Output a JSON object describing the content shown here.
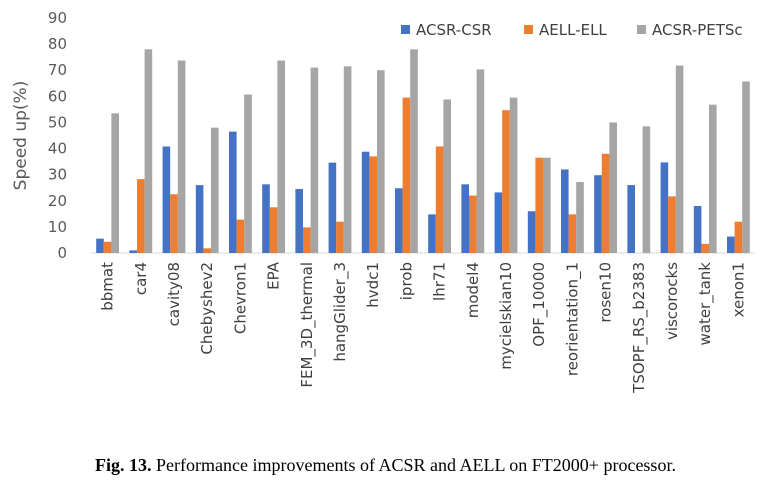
{
  "chart_data": {
    "type": "bar",
    "title": "",
    "xlabel": "",
    "ylabel": "Speed up(%)",
    "ylim": [
      0,
      90
    ],
    "yticks": [
      0,
      10,
      20,
      30,
      40,
      50,
      60,
      70,
      80,
      90
    ],
    "grid": false,
    "legend_position": "top-right",
    "categories": [
      "bbmat",
      "car4",
      "cavity08",
      "Chebyshev2",
      "Chevron1",
      "EPA",
      "FEM_3D_thermal",
      "hangGlider_3",
      "hvdc1",
      "iprob",
      "lhr71",
      "model4",
      "mycielskian10",
      "OPF_10000",
      "reorientation_1",
      "rosen10",
      "TSOPF_RS_b2383",
      "viscorocks",
      "water_tank",
      "xenon1"
    ],
    "series": [
      {
        "name": "ACSR-CSR",
        "color": "#4472C4",
        "values": [
          5.5,
          1,
          40.8,
          26,
          46.5,
          26.3,
          24.5,
          34.6,
          38.8,
          24.8,
          14.8,
          26.3,
          23.2,
          16,
          32,
          29.8,
          26,
          34.7,
          18,
          6.3
        ]
      },
      {
        "name": "AELL-ELL",
        "color": "#ED7D31",
        "values": [
          4.3,
          28.3,
          22.5,
          1.8,
          12.8,
          17.5,
          9.8,
          12,
          37,
          59.5,
          40.8,
          22,
          54.7,
          36.5,
          14.8,
          38,
          0,
          21.7,
          3.5,
          12
        ]
      },
      {
        "name": "ACSR-PETSc",
        "color": "#A5A5A5",
        "values": [
          53.5,
          78,
          73.7,
          48,
          60.7,
          73.7,
          71,
          71.5,
          70,
          78,
          58.8,
          70.3,
          59.5,
          36.5,
          27.2,
          50,
          48.5,
          71.8,
          56.8,
          65.7
        ]
      }
    ]
  },
  "caption": {
    "label": "Fig. 13.",
    "text": "Performance improvements of ACSR and AELL on FT2000+ processor."
  }
}
